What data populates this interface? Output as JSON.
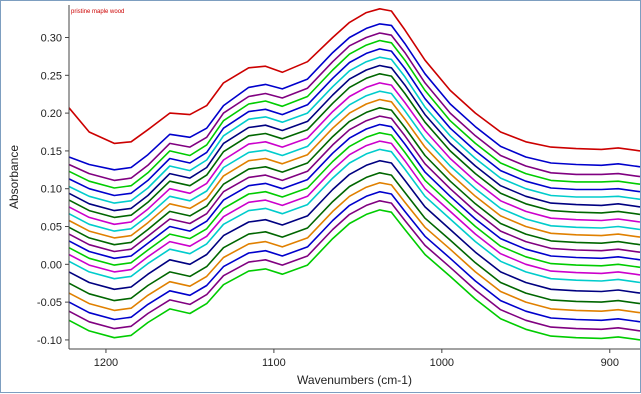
{
  "chart_data": {
    "type": "line",
    "title": "",
    "xlabel": "Wavenumbers (cm-1)",
    "ylabel": "Absorbance",
    "annotation": "pristine maple wood",
    "xlim": [
      1222,
      882
    ],
    "ylim": [
      -0.112,
      0.343
    ],
    "x_reversed": true,
    "grid": false,
    "legend": "none",
    "xticks": [
      1200,
      1100,
      1000,
      900
    ],
    "yticks": [
      -0.1,
      -0.05,
      0.0,
      0.05,
      0.1,
      0.15,
      0.2,
      0.25,
      0.3
    ],
    "ytick_labels": [
      "-0.10",
      "-0.05",
      "0.00",
      "0.05",
      "0.10",
      "0.15",
      "0.20",
      "0.25",
      "0.30"
    ],
    "x": [
      1222,
      1210,
      1195,
      1185,
      1175,
      1162,
      1150,
      1140,
      1130,
      1115,
      1105,
      1095,
      1080,
      1065,
      1055,
      1045,
      1037,
      1030,
      1022,
      1010,
      995,
      980,
      965,
      950,
      935,
      920,
      905,
      895,
      882
    ],
    "series": [
      {
        "color": "#cc0000",
        "values": [
          0.207,
          0.175,
          0.16,
          0.162,
          0.178,
          0.2,
          0.198,
          0.21,
          0.24,
          0.26,
          0.262,
          0.254,
          0.268,
          0.3,
          0.32,
          0.333,
          0.338,
          0.335,
          0.31,
          0.27,
          0.23,
          0.2,
          0.175,
          0.162,
          0.155,
          0.153,
          0.152,
          0.154,
          0.15
        ]
      },
      {
        "color": "#0000cc",
        "values": [
          0.142,
          0.132,
          0.125,
          0.128,
          0.145,
          0.172,
          0.168,
          0.18,
          0.21,
          0.234,
          0.238,
          0.232,
          0.245,
          0.28,
          0.3,
          0.312,
          0.318,
          0.316,
          0.292,
          0.252,
          0.212,
          0.182,
          0.156,
          0.142,
          0.134,
          0.132,
          0.131,
          0.133,
          0.129
        ]
      },
      {
        "color": "#800080",
        "values": [
          0.132,
          0.12,
          0.111,
          0.114,
          0.131,
          0.16,
          0.155,
          0.168,
          0.2,
          0.222,
          0.226,
          0.22,
          0.233,
          0.268,
          0.289,
          0.3,
          0.306,
          0.303,
          0.28,
          0.24,
          0.2,
          0.17,
          0.144,
          0.13,
          0.121,
          0.119,
          0.119,
          0.12,
          0.116
        ]
      },
      {
        "color": "#00cc00",
        "values": [
          0.123,
          0.11,
          0.101,
          0.104,
          0.121,
          0.15,
          0.144,
          0.158,
          0.19,
          0.212,
          0.216,
          0.209,
          0.222,
          0.257,
          0.278,
          0.29,
          0.296,
          0.293,
          0.27,
          0.23,
          0.19,
          0.16,
          0.134,
          0.12,
          0.111,
          0.109,
          0.109,
          0.11,
          0.106
        ]
      },
      {
        "color": "#0000cc",
        "values": [
          0.113,
          0.1,
          0.091,
          0.094,
          0.111,
          0.14,
          0.134,
          0.148,
          0.18,
          0.202,
          0.205,
          0.198,
          0.211,
          0.246,
          0.267,
          0.279,
          0.285,
          0.282,
          0.259,
          0.219,
          0.18,
          0.15,
          0.124,
          0.11,
          0.101,
          0.099,
          0.099,
          0.1,
          0.096
        ]
      },
      {
        "color": "#00cccc",
        "values": [
          0.103,
          0.09,
          0.081,
          0.084,
          0.101,
          0.13,
          0.124,
          0.138,
          0.17,
          0.192,
          0.195,
          0.188,
          0.2,
          0.235,
          0.256,
          0.268,
          0.274,
          0.271,
          0.248,
          0.208,
          0.17,
          0.14,
          0.114,
          0.1,
          0.091,
          0.089,
          0.089,
          0.09,
          0.086
        ]
      },
      {
        "color": "#000080",
        "values": [
          0.094,
          0.08,
          0.071,
          0.074,
          0.091,
          0.12,
          0.114,
          0.128,
          0.16,
          0.181,
          0.184,
          0.177,
          0.189,
          0.224,
          0.245,
          0.257,
          0.263,
          0.26,
          0.237,
          0.198,
          0.16,
          0.13,
          0.104,
          0.09,
          0.081,
          0.079,
          0.078,
          0.08,
          0.076
        ]
      },
      {
        "color": "#006600",
        "values": [
          0.085,
          0.071,
          0.062,
          0.065,
          0.082,
          0.11,
          0.104,
          0.118,
          0.149,
          0.17,
          0.173,
          0.166,
          0.178,
          0.213,
          0.234,
          0.246,
          0.252,
          0.249,
          0.226,
          0.188,
          0.15,
          0.12,
          0.094,
          0.08,
          0.071,
          0.069,
          0.068,
          0.07,
          0.066
        ]
      },
      {
        "color": "#cc00cc",
        "values": [
          0.076,
          0.062,
          0.053,
          0.056,
          0.073,
          0.1,
          0.094,
          0.107,
          0.138,
          0.159,
          0.162,
          0.155,
          0.167,
          0.202,
          0.222,
          0.234,
          0.24,
          0.237,
          0.214,
          0.177,
          0.14,
          0.11,
          0.084,
          0.07,
          0.061,
          0.059,
          0.058,
          0.06,
          0.056
        ]
      },
      {
        "color": "#00cccc",
        "values": [
          0.067,
          0.053,
          0.044,
          0.047,
          0.064,
          0.09,
          0.084,
          0.097,
          0.128,
          0.148,
          0.151,
          0.144,
          0.156,
          0.191,
          0.211,
          0.223,
          0.229,
          0.226,
          0.203,
          0.166,
          0.13,
          0.1,
          0.074,
          0.06,
          0.051,
          0.049,
          0.048,
          0.05,
          0.046
        ]
      },
      {
        "color": "#e08000",
        "values": [
          0.058,
          0.044,
          0.035,
          0.038,
          0.055,
          0.08,
          0.074,
          0.087,
          0.117,
          0.137,
          0.14,
          0.133,
          0.145,
          0.18,
          0.2,
          0.212,
          0.218,
          0.215,
          0.192,
          0.155,
          0.12,
          0.09,
          0.064,
          0.05,
          0.041,
          0.039,
          0.038,
          0.04,
          0.036
        ]
      },
      {
        "color": "#006600",
        "values": [
          0.049,
          0.035,
          0.026,
          0.029,
          0.046,
          0.07,
          0.064,
          0.077,
          0.106,
          0.126,
          0.129,
          0.122,
          0.134,
          0.169,
          0.189,
          0.201,
          0.207,
          0.204,
          0.181,
          0.144,
          0.11,
          0.08,
          0.054,
          0.04,
          0.031,
          0.029,
          0.028,
          0.03,
          0.026
        ]
      },
      {
        "color": "#800080",
        "values": [
          0.04,
          0.026,
          0.017,
          0.02,
          0.037,
          0.06,
          0.054,
          0.067,
          0.096,
          0.115,
          0.118,
          0.111,
          0.123,
          0.158,
          0.178,
          0.19,
          0.196,
          0.193,
          0.17,
          0.133,
          0.1,
          0.07,
          0.044,
          0.03,
          0.021,
          0.019,
          0.018,
          0.02,
          0.016
        ]
      },
      {
        "color": "#0000cc",
        "values": [
          0.031,
          0.017,
          0.008,
          0.011,
          0.028,
          0.05,
          0.044,
          0.057,
          0.085,
          0.104,
          0.107,
          0.1,
          0.112,
          0.147,
          0.167,
          0.179,
          0.185,
          0.182,
          0.159,
          0.122,
          0.09,
          0.06,
          0.034,
          0.02,
          0.011,
          0.009,
          0.008,
          0.01,
          0.006
        ]
      },
      {
        "color": "#00cc00",
        "values": [
          0.022,
          0.008,
          -0.001,
          0.002,
          0.019,
          0.04,
          0.034,
          0.047,
          0.074,
          0.093,
          0.096,
          0.089,
          0.101,
          0.136,
          0.156,
          0.168,
          0.174,
          0.171,
          0.148,
          0.111,
          0.08,
          0.05,
          0.024,
          0.01,
          0.001,
          -0.001,
          -0.002,
          0.0,
          -0.004
        ]
      },
      {
        "color": "#cc00cc",
        "values": [
          0.013,
          -0.001,
          -0.01,
          -0.007,
          0.01,
          0.03,
          0.024,
          0.037,
          0.063,
          0.082,
          0.085,
          0.078,
          0.09,
          0.125,
          0.145,
          0.157,
          0.163,
          0.16,
          0.137,
          0.1,
          0.07,
          0.04,
          0.014,
          0.0,
          -0.009,
          -0.011,
          -0.012,
          -0.01,
          -0.014
        ]
      },
      {
        "color": "#00cccc",
        "values": [
          0.004,
          -0.01,
          -0.019,
          -0.016,
          0.001,
          0.02,
          0.014,
          0.027,
          0.053,
          0.071,
          0.074,
          0.067,
          0.079,
          0.114,
          0.134,
          0.146,
          0.152,
          0.149,
          0.126,
          0.09,
          0.06,
          0.03,
          0.004,
          -0.01,
          -0.019,
          -0.021,
          -0.022,
          -0.02,
          -0.024
        ]
      },
      {
        "color": "#000080",
        "values": [
          -0.01,
          -0.024,
          -0.033,
          -0.03,
          -0.013,
          0.006,
          0.0,
          0.013,
          0.038,
          0.056,
          0.059,
          0.052,
          0.064,
          0.099,
          0.119,
          0.131,
          0.137,
          0.134,
          0.111,
          0.076,
          0.046,
          0.016,
          -0.01,
          -0.024,
          -0.033,
          -0.035,
          -0.036,
          -0.034,
          -0.038
        ]
      },
      {
        "color": "#006600",
        "values": [
          -0.025,
          -0.039,
          -0.048,
          -0.045,
          -0.028,
          -0.01,
          -0.016,
          -0.003,
          0.022,
          0.04,
          0.043,
          0.036,
          0.048,
          0.083,
          0.103,
          0.115,
          0.121,
          0.118,
          0.095,
          0.061,
          0.032,
          0.002,
          -0.024,
          -0.038,
          -0.047,
          -0.049,
          -0.05,
          -0.048,
          -0.052
        ]
      },
      {
        "color": "#e08000",
        "values": [
          -0.038,
          -0.052,
          -0.061,
          -0.058,
          -0.041,
          -0.023,
          -0.029,
          -0.016,
          0.009,
          0.027,
          0.03,
          0.023,
          0.035,
          0.07,
          0.09,
          0.102,
          0.108,
          0.105,
          0.082,
          0.049,
          0.02,
          -0.01,
          -0.036,
          -0.05,
          -0.059,
          -0.061,
          -0.062,
          -0.06,
          -0.064
        ]
      },
      {
        "color": "#0000cc",
        "values": [
          -0.05,
          -0.064,
          -0.073,
          -0.07,
          -0.053,
          -0.035,
          -0.041,
          -0.028,
          -0.003,
          0.015,
          0.018,
          0.011,
          0.023,
          0.058,
          0.078,
          0.09,
          0.096,
          0.093,
          0.07,
          0.037,
          0.008,
          -0.022,
          -0.048,
          -0.062,
          -0.071,
          -0.073,
          -0.074,
          -0.072,
          -0.076
        ]
      },
      {
        "color": "#800080",
        "values": [
          -0.062,
          -0.076,
          -0.085,
          -0.082,
          -0.065,
          -0.047,
          -0.053,
          -0.04,
          -0.015,
          0.003,
          0.006,
          -0.001,
          0.011,
          0.046,
          0.066,
          0.078,
          0.084,
          0.081,
          0.058,
          0.025,
          -0.004,
          -0.034,
          -0.06,
          -0.074,
          -0.083,
          -0.085,
          -0.086,
          -0.084,
          -0.088
        ]
      },
      {
        "color": "#00cc00",
        "values": [
          -0.074,
          -0.088,
          -0.097,
          -0.094,
          -0.077,
          -0.059,
          -0.065,
          -0.052,
          -0.027,
          -0.009,
          -0.006,
          -0.013,
          -0.001,
          0.034,
          0.054,
          0.066,
          0.072,
          0.069,
          0.046,
          0.013,
          -0.016,
          -0.046,
          -0.072,
          -0.086,
          -0.095,
          -0.097,
          -0.098,
          -0.096,
          -0.1
        ]
      }
    ]
  }
}
